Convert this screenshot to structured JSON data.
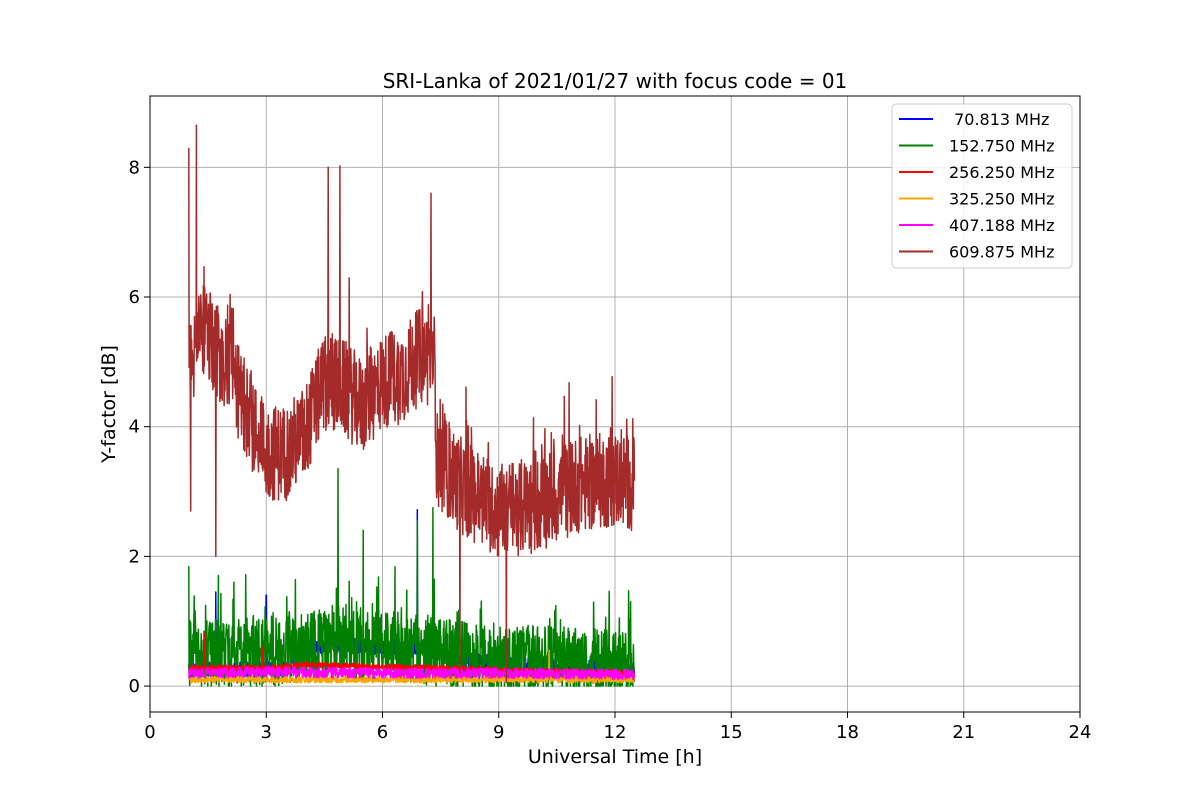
{
  "chart_data": {
    "type": "line",
    "title": "SRI-Lanka of 2021/01/27 with focus code = 01",
    "xlabel": "Universal Time [h]",
    "ylabel": "Y-factor [dB]",
    "xlim": [
      0,
      24
    ],
    "ylim": [
      -0.4,
      9.1
    ],
    "xticks": [
      0,
      3,
      6,
      9,
      12,
      15,
      18,
      21,
      24
    ],
    "yticks": [
      0,
      2,
      4,
      6,
      8
    ],
    "grid": true,
    "legend_position": "top-right",
    "x_range_observed": [
      1.0,
      12.5
    ],
    "series": [
      {
        "name": " 70.813 MHz",
        "color": "#0000ff",
        "base_points": [
          [
            1.0,
            0.25
          ],
          [
            3.0,
            0.25
          ],
          [
            3.6,
            0.3
          ],
          [
            4.0,
            0.6
          ],
          [
            5.0,
            0.65
          ],
          [
            6.0,
            0.6
          ],
          [
            7.0,
            0.6
          ],
          [
            7.5,
            0.45
          ],
          [
            8.0,
            0.4
          ],
          [
            9.0,
            0.35
          ],
          [
            10.0,
            0.35
          ],
          [
            11.0,
            0.3
          ],
          [
            12.5,
            0.25
          ]
        ],
        "noise": 0.12,
        "spikes": [
          [
            1.7,
            1.45
          ],
          [
            3.0,
            1.4
          ],
          [
            6.9,
            2.72
          ],
          [
            10.3,
            0.8
          ],
          [
            12.4,
            0.8
          ]
        ]
      },
      {
        "name": "152.750 MHz",
        "color": "#008000",
        "base_points": [
          [
            1.0,
            0.5
          ],
          [
            3.0,
            0.5
          ],
          [
            4.0,
            0.6
          ],
          [
            5.0,
            0.7
          ],
          [
            6.0,
            0.6
          ],
          [
            7.0,
            0.6
          ],
          [
            7.4,
            0.5
          ],
          [
            9.0,
            0.4
          ],
          [
            10.0,
            0.4
          ],
          [
            12.5,
            0.3
          ]
        ],
        "noise": 0.55,
        "spikes": [
          [
            1.0,
            1.85
          ],
          [
            4.85,
            3.35
          ],
          [
            6.9,
            2.55
          ],
          [
            7.3,
            2.75
          ],
          [
            5.5,
            2.4
          ],
          [
            12.4,
            1.3
          ]
        ]
      },
      {
        "name": "256.250 MHz",
        "color": "#ff0000",
        "base_points": [
          [
            1.0,
            0.28
          ],
          [
            3.0,
            0.28
          ],
          [
            4.0,
            0.33
          ],
          [
            6.0,
            0.3
          ],
          [
            7.5,
            0.28
          ],
          [
            9.0,
            0.25
          ],
          [
            12.5,
            0.2
          ]
        ],
        "noise": 0.04,
        "spikes": [
          [
            1.4,
            0.82
          ],
          [
            2.9,
            0.6
          ]
        ]
      },
      {
        "name": "325.250 MHz",
        "color": "#ffa500",
        "base_points": [
          [
            1.0,
            0.1
          ],
          [
            12.5,
            0.1
          ]
        ],
        "noise": 0.05,
        "spikes": [
          [
            10.3,
            0.55
          ]
        ]
      },
      {
        "name": "407.188 MHz",
        "color": "#ff00ff",
        "base_points": [
          [
            1.0,
            0.2
          ],
          [
            3.0,
            0.22
          ],
          [
            6.0,
            0.2
          ],
          [
            9.0,
            0.2
          ],
          [
            12.5,
            0.18
          ]
        ],
        "noise": 0.08,
        "spikes": []
      },
      {
        "name": "609.875 MHz",
        "color": "#a52a2a",
        "base_points": [
          [
            1.0,
            4.8
          ],
          [
            1.3,
            5.5
          ],
          [
            2.0,
            5.0
          ],
          [
            2.5,
            4.2
          ],
          [
            3.0,
            3.6
          ],
          [
            3.5,
            3.6
          ],
          [
            4.0,
            3.9
          ],
          [
            4.5,
            4.7
          ],
          [
            5.0,
            4.6
          ],
          [
            5.5,
            4.3
          ],
          [
            6.0,
            4.7
          ],
          [
            6.5,
            4.8
          ],
          [
            7.0,
            5.1
          ],
          [
            7.35,
            5.0
          ],
          [
            7.4,
            3.5
          ],
          [
            8.0,
            3.1
          ],
          [
            9.0,
            2.7
          ],
          [
            10.0,
            2.8
          ],
          [
            11.0,
            3.1
          ],
          [
            12.0,
            3.2
          ],
          [
            12.5,
            3.1
          ]
        ],
        "noise": 0.75,
        "spikes": [
          [
            1.0,
            8.3
          ],
          [
            1.2,
            8.65
          ],
          [
            1.05,
            2.7
          ],
          [
            1.7,
            2.0
          ],
          [
            4.6,
            8.0
          ],
          [
            4.9,
            8.02
          ],
          [
            7.25,
            7.6
          ],
          [
            9.2,
            0.05
          ],
          [
            8.0,
            0.2
          ]
        ]
      }
    ]
  }
}
